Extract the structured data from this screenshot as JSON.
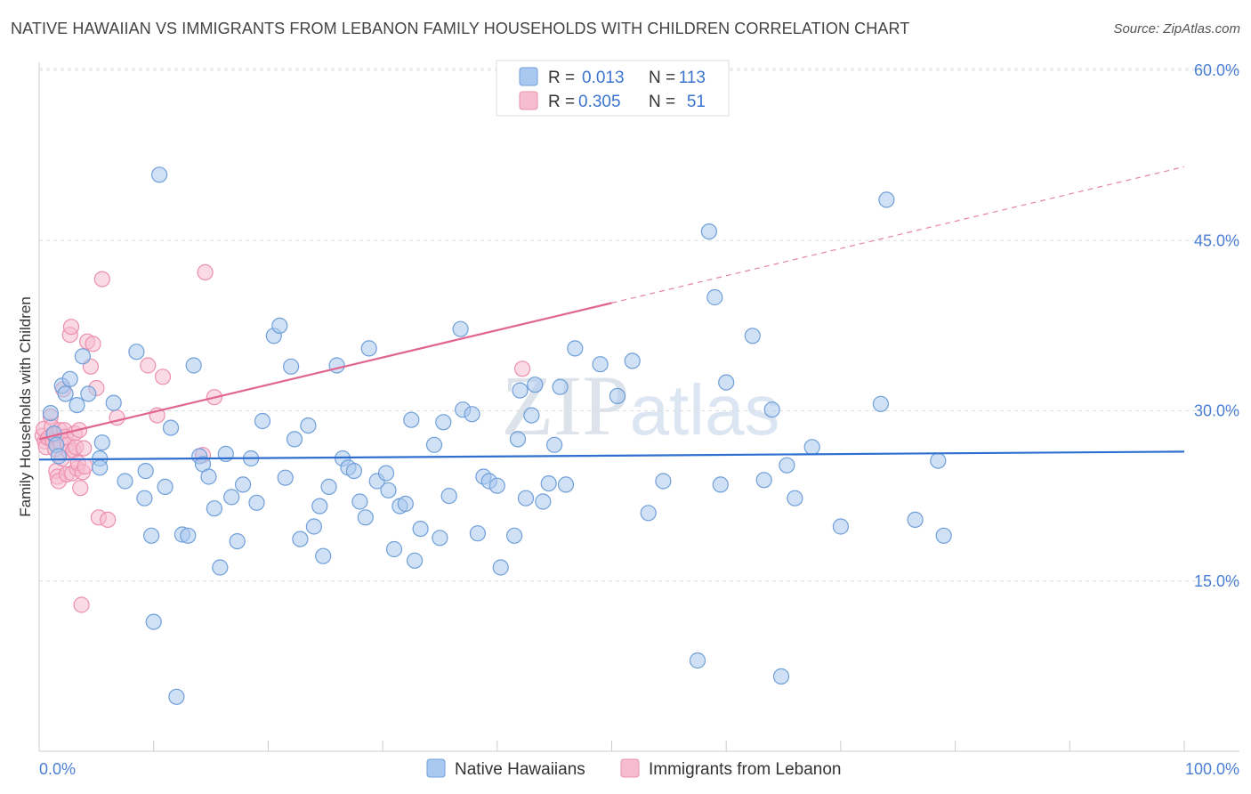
{
  "chart_data": {
    "type": "scatter",
    "title": "NATIVE HAWAIIAN VS IMMIGRANTS FROM LEBANON FAMILY HOUSEHOLDS WITH CHILDREN CORRELATION CHART",
    "source": "Source: ZipAtlas.com",
    "xlabel": "",
    "ylabel": "Family Households with Children",
    "xlim": [
      0,
      100
    ],
    "ylim": [
      0,
      62
    ],
    "x_tick_labels": [
      "0.0%",
      "100.0%"
    ],
    "y_ticks": [
      15,
      30,
      45,
      60
    ],
    "y_tick_labels": [
      "15.0%",
      "30.0%",
      "45.0%",
      "60.0%"
    ],
    "watermark": "ZIPatlas",
    "legend": {
      "position": "top-center",
      "entries": [
        {
          "r_label": "R =",
          "r_value": "0.013",
          "n_label": "N =",
          "n_value": "113"
        },
        {
          "r_label": "R =",
          "r_value": "0.305",
          "n_label": "N =",
          "n_value": "51"
        }
      ]
    },
    "bottom_legend": [
      "Native Hawaiians",
      "Immigrants from Lebanon"
    ],
    "colors": {
      "blue_fill": "#a9c8ef",
      "blue_stroke": "#6f9fd8",
      "blue_line": "#2f6fcf",
      "pink_fill": "#f6bcd0",
      "pink_stroke": "#ec8fae",
      "pink_line": "#e0668f",
      "tick_label": "#4a7fd4"
    },
    "series": [
      {
        "name": "Native Hawaiians",
        "trend": {
          "x0": 0,
          "y0": 25.7,
          "x1": 100,
          "y1": 26.4,
          "dashed_from": null
        },
        "points": [
          [
            1,
            29.8
          ],
          [
            1.3,
            28
          ],
          [
            1.5,
            27
          ],
          [
            1.7,
            26
          ],
          [
            2,
            32.2
          ],
          [
            2.3,
            31.5
          ],
          [
            2.7,
            32.8
          ],
          [
            3.3,
            30.5
          ],
          [
            3.8,
            34.8
          ],
          [
            4.3,
            31.5
          ],
          [
            5.3,
            25.8
          ],
          [
            5.5,
            27.2
          ],
          [
            5.3,
            25
          ],
          [
            6.5,
            30.7
          ],
          [
            7.5,
            23.8
          ],
          [
            8.5,
            35.2
          ],
          [
            9.2,
            22.3
          ],
          [
            9.3,
            24.7
          ],
          [
            9.8,
            19
          ],
          [
            10,
            11.4
          ],
          [
            10.5,
            50.8
          ],
          [
            11,
            23.3
          ],
          [
            11.5,
            28.5
          ],
          [
            12,
            4.8
          ],
          [
            12.5,
            19.1
          ],
          [
            13,
            19
          ],
          [
            13.5,
            34
          ],
          [
            14,
            26
          ],
          [
            14.3,
            25.3
          ],
          [
            14.8,
            24.2
          ],
          [
            15.3,
            21.4
          ],
          [
            15.8,
            16.2
          ],
          [
            16.3,
            26.2
          ],
          [
            16.8,
            22.4
          ],
          [
            17.3,
            18.5
          ],
          [
            17.8,
            23.5
          ],
          [
            18.5,
            25.8
          ],
          [
            19,
            21.9
          ],
          [
            19.5,
            29.1
          ],
          [
            20.5,
            36.6
          ],
          [
            21,
            37.5
          ],
          [
            21.5,
            24.1
          ],
          [
            22,
            33.9
          ],
          [
            22.3,
            27.5
          ],
          [
            22.8,
            18.7
          ],
          [
            23.5,
            28.7
          ],
          [
            24,
            19.8
          ],
          [
            24.5,
            21.6
          ],
          [
            24.8,
            17.2
          ],
          [
            25.3,
            23.3
          ],
          [
            26,
            34
          ],
          [
            26.5,
            25.8
          ],
          [
            27,
            25
          ],
          [
            27.5,
            24.7
          ],
          [
            28,
            22
          ],
          [
            28.5,
            20.6
          ],
          [
            28.8,
            35.5
          ],
          [
            29.5,
            23.8
          ],
          [
            30.3,
            24.5
          ],
          [
            30.5,
            23
          ],
          [
            31,
            17.8
          ],
          [
            31.5,
            21.6
          ],
          [
            32,
            21.8
          ],
          [
            32.5,
            29.2
          ],
          [
            32.8,
            16.8
          ],
          [
            33.3,
            19.6
          ],
          [
            34.5,
            27
          ],
          [
            35,
            18.8
          ],
          [
            35.3,
            29
          ],
          [
            35.8,
            22.5
          ],
          [
            36.8,
            37.2
          ],
          [
            37,
            30.1
          ],
          [
            37.8,
            29.7
          ],
          [
            38.3,
            19.2
          ],
          [
            38.8,
            24.2
          ],
          [
            39.3,
            23.8
          ],
          [
            40,
            23.4
          ],
          [
            40.3,
            16.2
          ],
          [
            41.5,
            19
          ],
          [
            41.8,
            27.5
          ],
          [
            42,
            31.8
          ],
          [
            42.5,
            22.3
          ],
          [
            43,
            29.6
          ],
          [
            43.3,
            32.3
          ],
          [
            44,
            22
          ],
          [
            44.5,
            23.6
          ],
          [
            45,
            27
          ],
          [
            45.5,
            32.1
          ],
          [
            46,
            23.5
          ],
          [
            46.8,
            35.5
          ],
          [
            49,
            34.1
          ],
          [
            50.5,
            31.3
          ],
          [
            51.8,
            34.4
          ],
          [
            53.2,
            21
          ],
          [
            54.5,
            23.8
          ],
          [
            57.5,
            8
          ],
          [
            58.5,
            45.8
          ],
          [
            59,
            40
          ],
          [
            59.5,
            23.5
          ],
          [
            60,
            32.5
          ],
          [
            62.3,
            36.6
          ],
          [
            63.3,
            23.9
          ],
          [
            64,
            30.1
          ],
          [
            64.8,
            6.6
          ],
          [
            65.3,
            25.2
          ],
          [
            66,
            22.3
          ],
          [
            67.5,
            26.8
          ],
          [
            70,
            19.8
          ],
          [
            73.5,
            30.6
          ],
          [
            74,
            48.6
          ],
          [
            76.5,
            20.4
          ],
          [
            78.5,
            25.6
          ],
          [
            79,
            19
          ]
        ]
      },
      {
        "name": "Immigrants from Lebanon",
        "trend": {
          "x0": 0,
          "y0": 27.5,
          "x1": 100,
          "y1": 51.5,
          "dashed_from": 50
        },
        "points": [
          [
            0.3,
            27.8
          ],
          [
            0.4,
            28.4
          ],
          [
            0.5,
            27.3
          ],
          [
            0.6,
            26.8
          ],
          [
            0.8,
            27.6
          ],
          [
            1,
            29.5
          ],
          [
            1.1,
            28.6
          ],
          [
            1.2,
            27.4
          ],
          [
            1.3,
            27.9
          ],
          [
            1.4,
            26.6
          ],
          [
            1.5,
            24.7
          ],
          [
            1.6,
            24.2
          ],
          [
            1.7,
            23.8
          ],
          [
            1.8,
            28.3
          ],
          [
            1.9,
            27.1
          ],
          [
            2,
            25.8
          ],
          [
            2.1,
            31.9
          ],
          [
            2.2,
            28.3
          ],
          [
            2.3,
            27.7
          ],
          [
            2.4,
            24.4
          ],
          [
            2.5,
            27
          ],
          [
            2.6,
            26.4
          ],
          [
            2.7,
            36.7
          ],
          [
            2.8,
            37.4
          ],
          [
            2.9,
            24.5
          ],
          [
            3,
            26.5
          ],
          [
            3.1,
            28
          ],
          [
            3.2,
            26.8
          ],
          [
            3.3,
            24.9
          ],
          [
            3.4,
            25.4
          ],
          [
            3.5,
            28.3
          ],
          [
            3.6,
            23.2
          ],
          [
            3.7,
            12.9
          ],
          [
            3.8,
            24.6
          ],
          [
            3.9,
            26.7
          ],
          [
            4,
            25.1
          ],
          [
            4.2,
            36.1
          ],
          [
            4.5,
            33.9
          ],
          [
            4.7,
            35.9
          ],
          [
            5,
            32
          ],
          [
            5.2,
            20.6
          ],
          [
            5.5,
            41.6
          ],
          [
            6,
            20.4
          ],
          [
            6.8,
            29.4
          ],
          [
            9.5,
            34
          ],
          [
            10.3,
            29.6
          ],
          [
            10.8,
            33
          ],
          [
            14.3,
            26.1
          ],
          [
            14.5,
            42.2
          ],
          [
            15.3,
            31.2
          ],
          [
            42.2,
            33.7
          ]
        ]
      }
    ]
  }
}
